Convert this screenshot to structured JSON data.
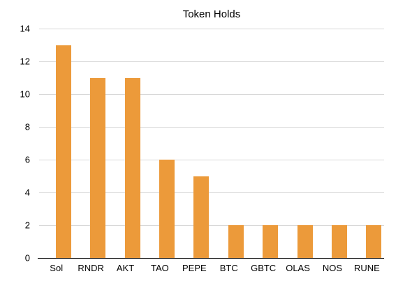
{
  "chart_data": {
    "type": "bar",
    "title": "Token Holds",
    "categories": [
      "Sol",
      "RNDR",
      "AKT",
      "TAO",
      "PEPE",
      "BTC",
      "GBTC",
      "OLAS",
      "NOS",
      "RUNE"
    ],
    "values": [
      13,
      11,
      11,
      6,
      5,
      2,
      2,
      2,
      2,
      2
    ],
    "xlabel": "",
    "ylabel": "",
    "ylim": [
      0,
      14
    ],
    "yticks": [
      0,
      2,
      4,
      6,
      8,
      10,
      12,
      14
    ],
    "grid": true,
    "legend": false,
    "colors": {
      "bar": "#EC9A3A",
      "gridline": "#D8D8D8",
      "axis": "#000000",
      "text": "#000000",
      "background": "#FFFFFF"
    }
  }
}
